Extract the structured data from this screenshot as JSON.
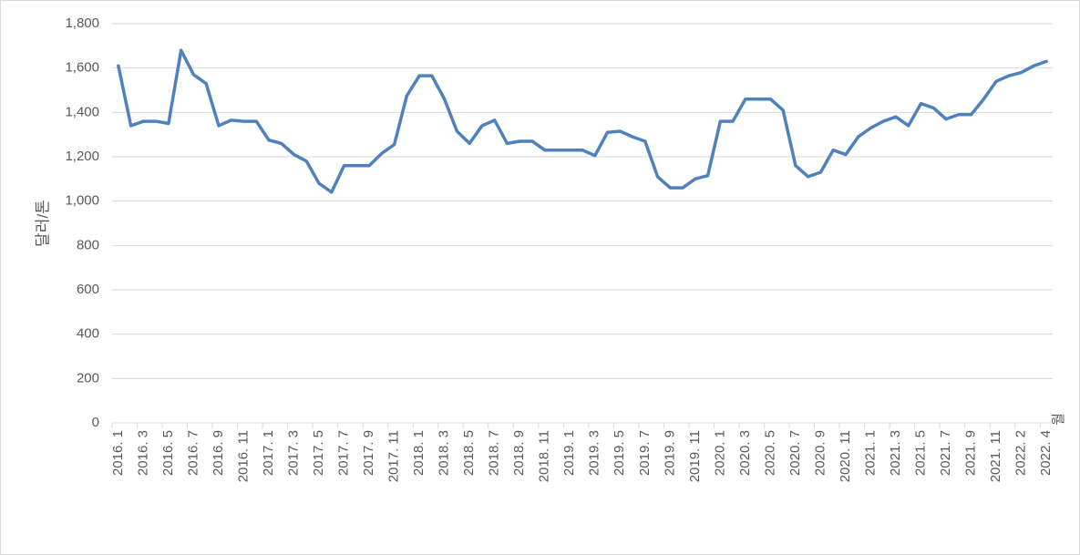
{
  "chart_data": {
    "type": "line",
    "y_label": "달러/톤",
    "x_label": "월",
    "categories": [
      "2016. 1",
      null,
      "2016. 3",
      null,
      "2016. 5",
      null,
      "2016. 7",
      null,
      "2016. 9",
      null,
      "2016. 11",
      null,
      "2017. 1",
      null,
      "2017. 3",
      null,
      "2017. 5",
      null,
      "2017. 7",
      null,
      "2017. 9",
      null,
      "2017. 11",
      null,
      "2018. 1",
      null,
      "2018. 3",
      null,
      "2018. 5",
      null,
      "2018. 7",
      null,
      "2018. 9",
      null,
      "2018. 11",
      null,
      "2019. 1",
      null,
      "2019. 3",
      null,
      "2019. 5",
      null,
      "2019. 7",
      null,
      "2019. 9",
      null,
      "2019. 11",
      null,
      "2020. 1",
      null,
      "2020. 3",
      null,
      "2020. 5",
      null,
      "2020. 7",
      null,
      "2020. 9",
      null,
      "2020. 11",
      null,
      "2021. 1",
      null,
      "2021. 3",
      null,
      "2021. 5",
      null,
      "2021. 7",
      null,
      "2021. 9",
      null,
      "2021. 11",
      null,
      "2022. 2",
      null,
      "2022. 4"
    ],
    "values": [
      1610,
      1340,
      1360,
      1360,
      1350,
      1680,
      1570,
      1530,
      1340,
      1365,
      1360,
      1360,
      1275,
      1260,
      1210,
      1180,
      1080,
      1040,
      1160,
      1160,
      1160,
      1215,
      1255,
      1475,
      1565,
      1565,
      1460,
      1315,
      1260,
      1340,
      1365,
      1260,
      1270,
      1270,
      1230,
      1230,
      1230,
      1230,
      1205,
      1310,
      1315,
      1290,
      1270,
      1110,
      1060,
      1060,
      1100,
      1115,
      1360,
      1360,
      1460,
      1460,
      1460,
      1410,
      1160,
      1110,
      1130,
      1230,
      1210,
      1290,
      1330,
      1360,
      1380,
      1340,
      1440,
      1420,
      1370,
      1390,
      1390,
      1460,
      1540,
      1565,
      1580,
      1610,
      1630
    ],
    "color": "#4f81bd",
    "ylim": [
      0,
      1800
    ],
    "yticks": [
      0,
      200,
      400,
      600,
      800,
      {
        "value": 1000,
        "label": "1,000"
      },
      {
        "value": 1200,
        "label": "1,200"
      },
      {
        "value": 1400,
        "label": "1,400"
      },
      {
        "value": 1600,
        "label": "1,600"
      },
      {
        "value": 1800,
        "label": "1,800"
      }
    ],
    "grid": true
  }
}
